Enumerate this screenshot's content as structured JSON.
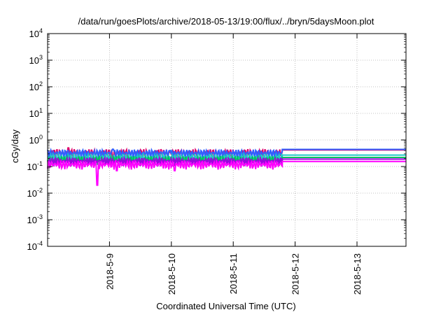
{
  "chart_data": {
    "type": "line",
    "title": "/data/run/goesPlots/archive/2018-05-13/19:00/flux/../bryn/5daysMoon.plot",
    "xlabel": "Coordinated Universal Time (UTC)",
    "ylabel": "cGy/day",
    "yscale": "log",
    "ylim_exp": [
      -4,
      4
    ],
    "y_ticks": [
      {
        "base": "10",
        "exp": "4"
      },
      {
        "base": "10",
        "exp": "3"
      },
      {
        "base": "10",
        "exp": "2"
      },
      {
        "base": "10",
        "exp": "1"
      },
      {
        "base": "10",
        "exp": "0"
      },
      {
        "base": "10",
        "exp": "-1"
      },
      {
        "base": "10",
        "exp": "-2"
      },
      {
        "base": "10",
        "exp": "-3"
      },
      {
        "base": "10",
        "exp": "-4"
      }
    ],
    "xlim": [
      "2018-05-08 00:00",
      "2018-05-13 19:00"
    ],
    "x_ticks": [
      "2018-5-9",
      "2018-5-10",
      "2018-5-11",
      "2018-5-12",
      "2018-5-13"
    ],
    "grid": true,
    "legend": "none",
    "data_end": "2018-05-11 19:00",
    "series": [
      {
        "color": "#e0006a",
        "level_end": 0.42,
        "base": 0.33,
        "spikes": [
          [
            0.33,
            0.5
          ],
          [
            1.06,
            0.18
          ]
        ]
      },
      {
        "color": "#3060ff",
        "level_end": 0.44,
        "base": 0.32,
        "spikes": [
          [
            1.06,
            0.45
          ],
          [
            1.98,
            0.4
          ]
        ]
      },
      {
        "color": "#20c8c8",
        "level_end": 0.27,
        "base": 0.22,
        "spikes": []
      },
      {
        "color": "#00c060",
        "level_end": 0.22,
        "base": 0.18,
        "spikes": []
      },
      {
        "color": "#a000e0",
        "level_end": 0.19,
        "base": 0.16,
        "spikes": []
      },
      {
        "color": "#ff00ff",
        "level_end": 0.155,
        "base": 0.12,
        "spikes": [
          [
            0.8,
            0.02
          ],
          [
            1.12,
            0.07
          ],
          [
            2.05,
            0.07
          ]
        ]
      }
    ]
  }
}
